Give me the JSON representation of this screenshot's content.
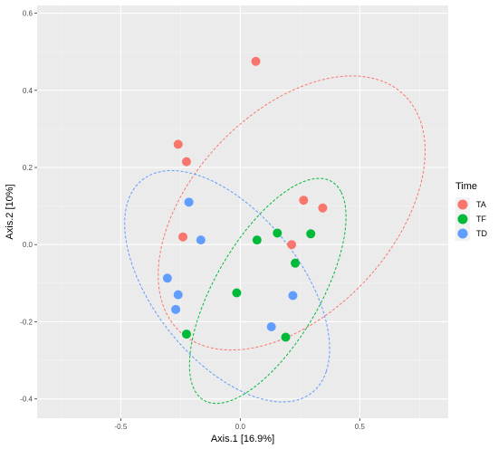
{
  "chart_data": {
    "type": "scatter",
    "xlabel": "Axis.1   [16.9%]",
    "ylabel": "Axis.2   [10%]",
    "xlim": [
      -0.85,
      0.87
    ],
    "ylim": [
      -0.45,
      0.62
    ],
    "x_ticks": [
      -0.5,
      0.0,
      0.5
    ],
    "x_tick_labels": [
      "-0.5",
      "0.0",
      "0.5"
    ],
    "y_ticks": [
      -0.4,
      -0.2,
      0.0,
      0.2,
      0.4,
      0.6
    ],
    "y_tick_labels": [
      "-0.4",
      "-0.2",
      "0.0",
      "0.2",
      "0.4",
      "0.6"
    ],
    "grid": true,
    "legend": {
      "title": "Time",
      "placement": "right"
    },
    "series": [
      {
        "name": "TA",
        "color": "#F8766D",
        "points": [
          {
            "x": 0.065,
            "y": 0.475
          },
          {
            "x": -0.26,
            "y": 0.26
          },
          {
            "x": -0.225,
            "y": 0.215
          },
          {
            "x": 0.265,
            "y": 0.115
          },
          {
            "x": 0.345,
            "y": 0.095
          },
          {
            "x": -0.24,
            "y": 0.02
          },
          {
            "x": 0.215,
            "y": 0.0
          }
        ],
        "ellipse": {
          "cx": 0.215,
          "cy": 0.082,
          "rx": 0.59,
          "ry": 0.3,
          "angle_deg": 22
        }
      },
      {
        "name": "TF",
        "color": "#00BA38",
        "points": [
          {
            "x": 0.155,
            "y": 0.03
          },
          {
            "x": 0.295,
            "y": 0.028
          },
          {
            "x": 0.07,
            "y": 0.012
          },
          {
            "x": 0.23,
            "y": -0.048
          },
          {
            "x": -0.015,
            "y": -0.125
          },
          {
            "x": -0.225,
            "y": -0.232
          },
          {
            "x": 0.19,
            "y": -0.24
          }
        ],
        "ellipse": {
          "cx": 0.115,
          "cy": -0.12,
          "rx": 0.4,
          "ry": 0.18,
          "angle_deg": 40
        }
      },
      {
        "name": "TD",
        "color": "#619CFF",
        "points": [
          {
            "x": -0.215,
            "y": 0.11
          },
          {
            "x": -0.165,
            "y": 0.012
          },
          {
            "x": -0.305,
            "y": -0.087
          },
          {
            "x": -0.26,
            "y": -0.13
          },
          {
            "x": 0.22,
            "y": -0.132
          },
          {
            "x": -0.27,
            "y": -0.168
          },
          {
            "x": 0.13,
            "y": -0.213
          }
        ],
        "ellipse": {
          "cx": -0.055,
          "cy": -0.108,
          "rx": 0.47,
          "ry": 0.23,
          "angle_deg": -28
        }
      }
    ]
  }
}
